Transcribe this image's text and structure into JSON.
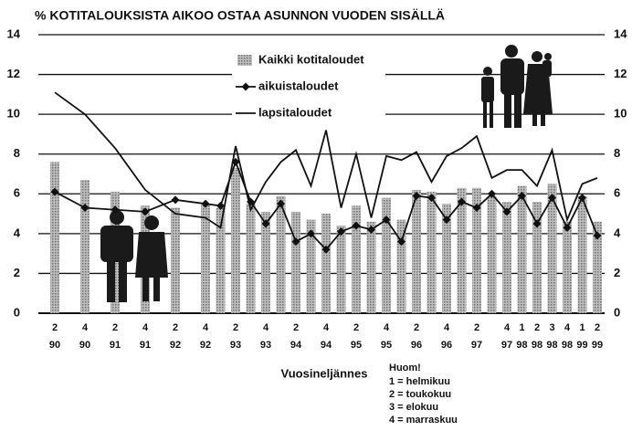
{
  "chart_data": {
    "type": "bar_line",
    "title": "% KOTITALOUKSISTA AIKOO OSTAA ASUNNON VUODEN SISÄLLÄ",
    "x_label": "Vuosineljännes",
    "note": [
      "Huom!",
      "1 = helmikuu",
      "2 = toukokuu",
      "3 = elokuu",
      "4 = marraskuu"
    ],
    "quarters": [
      "2",
      null,
      "4",
      null,
      "2",
      null,
      "4",
      null,
      "2",
      null,
      "4",
      null,
      "2",
      null,
      "4",
      null,
      "2",
      null,
      "4",
      null,
      "2",
      null,
      "4",
      null,
      "2",
      null,
      "4",
      null,
      "2",
      null,
      "4",
      "1",
      "2",
      "3",
      "4",
      "1",
      "2"
    ],
    "categories": [
      "90",
      null,
      "90",
      null,
      "91",
      null,
      "91",
      null,
      "92",
      null,
      "92",
      null,
      "93",
      null,
      "93",
      null,
      "94",
      null,
      "94",
      null,
      "95",
      null,
      "95",
      null,
      "96",
      null,
      "96",
      null,
      "97",
      null,
      "97",
      "98",
      "98",
      "98",
      "98",
      "99",
      "99"
    ],
    "series": [
      {
        "name": "Kaikki kotitaloudet",
        "kind": "bar",
        "color": "#a8a8a8",
        "values": [
          7.6,
          null,
          6.7,
          null,
          6.1,
          null,
          5.4,
          null,
          5.3,
          null,
          5.5,
          5.3,
          7.3,
          5.5,
          5.1,
          5.9,
          5.1,
          4.7,
          5.0,
          4.4,
          5.4,
          4.6,
          5.8,
          4.7,
          6.2,
          6.1,
          5.5,
          6.3,
          6.3,
          5.9,
          5.6,
          6.4,
          5.6,
          6.5,
          4.6,
          5.9,
          4.6
        ]
      },
      {
        "name": "aikuistaloudet",
        "kind": "line",
        "marker": "diamond",
        "color": "#111111",
        "values": [
          6.1,
          null,
          5.3,
          null,
          5.2,
          null,
          5.1,
          null,
          5.7,
          null,
          5.5,
          5.4,
          7.6,
          5.6,
          4.5,
          5.5,
          3.6,
          4.0,
          3.2,
          4.1,
          4.4,
          4.2,
          4.7,
          3.6,
          5.9,
          5.8,
          4.7,
          5.6,
          5.3,
          6.0,
          5.1,
          5.9,
          4.5,
          5.8,
          4.3,
          5.8,
          3.9
        ]
      },
      {
        "name": "lapsitaloudet",
        "kind": "line",
        "marker": "none",
        "color": "#111111",
        "values": [
          11.1,
          null,
          10.0,
          null,
          8.3,
          null,
          6.2,
          null,
          5.0,
          null,
          4.8,
          4.3,
          8.4,
          5.2,
          6.6,
          7.6,
          8.2,
          6.4,
          9.2,
          5.3,
          8.0,
          4.8,
          7.9,
          7.7,
          8.1,
          6.6,
          7.9,
          8.3,
          8.9,
          6.8,
          7.2,
          7.2,
          6.4,
          8.2,
          4.7,
          6.5,
          6.8
        ]
      }
    ],
    "ylim": [
      0,
      14
    ],
    "yticks": [
      0,
      2,
      4,
      6,
      8,
      10,
      12,
      14
    ],
    "grid": true
  }
}
